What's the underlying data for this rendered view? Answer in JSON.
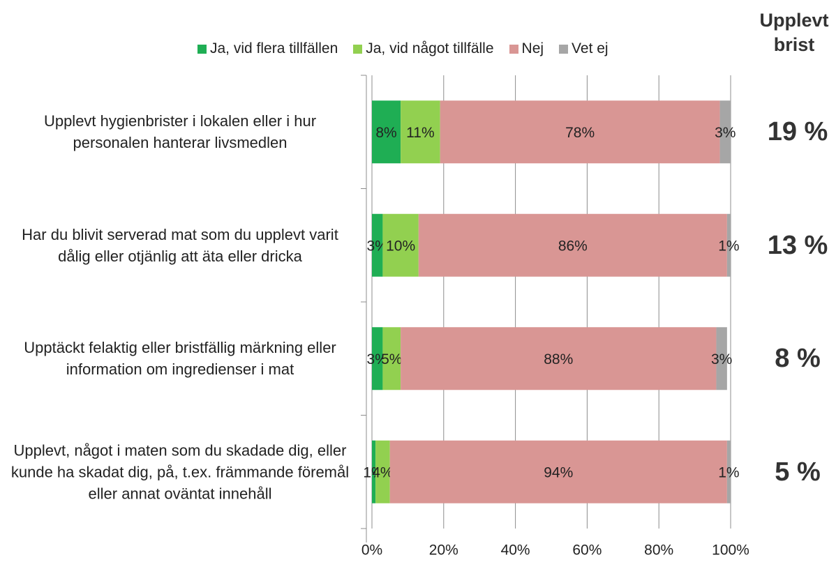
{
  "chart_data": {
    "type": "stacked_barh",
    "categories": [
      "Upplevt hygienbrister i lokalen eller i hur personalen hanterar livsmedlen",
      "Har du blivit serverad mat som du upplevt varit dålig eller otjänlig att äta eller dricka",
      "Upptäckt felaktig eller bristfällig märkning eller information om ingredienser i mat",
      "Upplevt, något i maten som du skadade dig, eller kunde ha skadat dig, på, t.ex. främmande föremål eller annat oväntat innehåll"
    ],
    "series": [
      {
        "name": "Ja, vid flera tillfällen",
        "color": "#1fae54",
        "values": [
          8,
          3,
          3,
          1
        ],
        "value_labels": [
          "8%",
          "3%",
          "3%",
          "1%"
        ]
      },
      {
        "name": "Ja, vid något tillfälle",
        "color": "#92d050",
        "values": [
          11,
          10,
          5,
          4
        ],
        "value_labels": [
          "11%",
          "10%",
          "5%",
          "4%"
        ]
      },
      {
        "name": "Nej",
        "color": "#d99694",
        "values": [
          78,
          86,
          88,
          94
        ],
        "value_labels": [
          "78%",
          "86%",
          "88%",
          "94%"
        ]
      },
      {
        "name": "Vet ej",
        "color": "#a6a6a6",
        "values": [
          3,
          1,
          3,
          1
        ],
        "value_labels": [
          "3%",
          "1%",
          "3%",
          "1%"
        ]
      }
    ],
    "xlim": [
      0,
      100
    ],
    "xticks": [
      {
        "value": 0,
        "label": "0%"
      },
      {
        "value": 20,
        "label": "20%"
      },
      {
        "value": 40,
        "label": "40%"
      },
      {
        "value": 60,
        "label": "60%"
      },
      {
        "value": 80,
        "label": "80%"
      },
      {
        "value": 100,
        "label": "100%"
      }
    ],
    "grid": true,
    "side_header": "Upplevt brist",
    "side_labels": [
      "19 %",
      "13 %",
      "8 %",
      "5 %"
    ]
  }
}
